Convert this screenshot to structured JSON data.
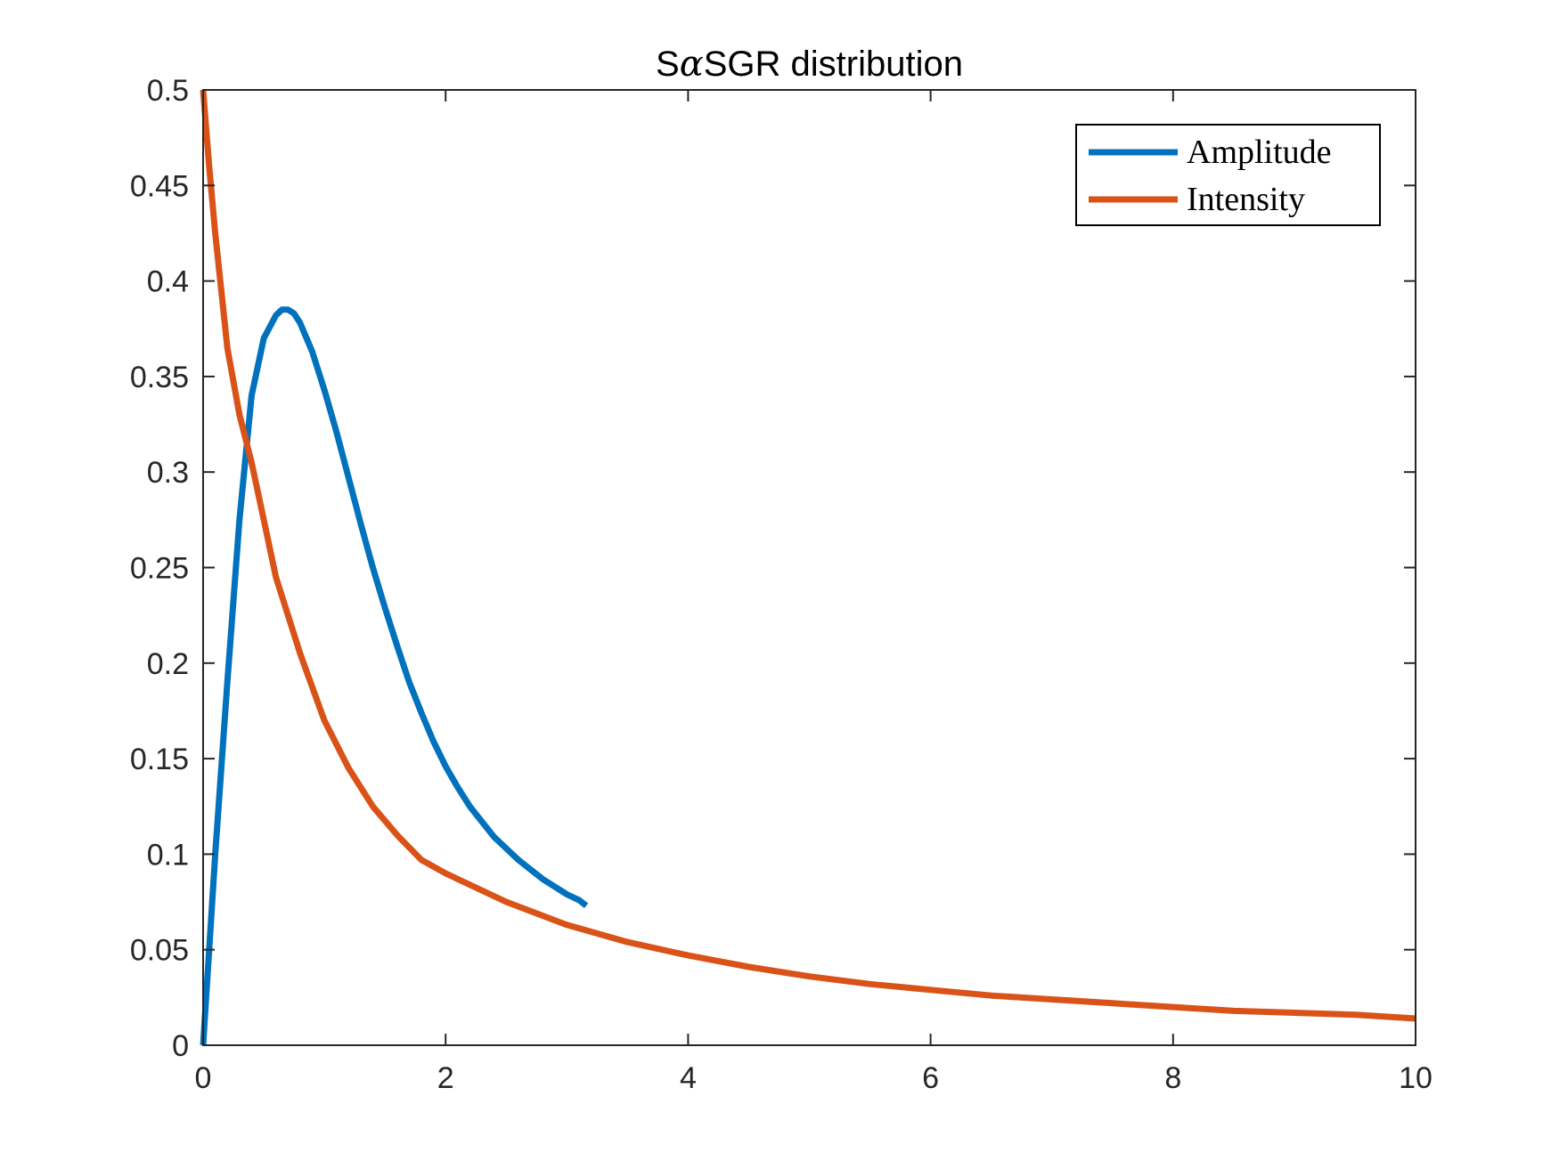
{
  "chart_data": {
    "type": "line",
    "title": {
      "prefix": "S",
      "greek": "α",
      "suffix": "SGR distribution"
    },
    "xlabel": "",
    "ylabel": "",
    "xlim": [
      0,
      10
    ],
    "ylim": [
      0,
      0.5
    ],
    "xticks": [
      0,
      2,
      4,
      6,
      8,
      10
    ],
    "xtick_labels": [
      "0",
      "2",
      "4",
      "6",
      "8",
      "10"
    ],
    "yticks": [
      0,
      0.05,
      0.1,
      0.15,
      0.2,
      0.25,
      0.3,
      0.35,
      0.4,
      0.45,
      0.5
    ],
    "ytick_labels": [
      "0",
      "0.05",
      "0.1",
      "0.15",
      "0.2",
      "0.25",
      "0.3",
      "0.35",
      "0.4",
      "0.45",
      "0.5"
    ],
    "grid": false,
    "legend_position": "top-right",
    "series": [
      {
        "name": "Amplitude",
        "color": "#0072BD",
        "x": [
          0,
          0.05,
          0.1,
          0.2,
          0.3,
          0.4,
          0.5,
          0.6,
          0.65,
          0.7,
          0.75,
          0.8,
          0.9,
          1.0,
          1.1,
          1.2,
          1.3,
          1.4,
          1.5,
          1.6,
          1.7,
          1.8,
          1.9,
          2.0,
          2.1,
          2.2,
          2.3,
          2.4,
          2.5,
          2.6,
          2.7,
          2.8,
          2.9,
          3.0,
          3.1,
          3.16
        ],
        "y": [
          0,
          0.05,
          0.1,
          0.19,
          0.275,
          0.34,
          0.37,
          0.382,
          0.385,
          0.385,
          0.383,
          0.378,
          0.363,
          0.343,
          0.321,
          0.297,
          0.273,
          0.25,
          0.229,
          0.209,
          0.19,
          0.174,
          0.159,
          0.146,
          0.135,
          0.125,
          0.117,
          0.109,
          0.103,
          0.097,
          0.092,
          0.087,
          0.083,
          0.079,
          0.076,
          0.073
        ]
      },
      {
        "name": "Intensity",
        "color": "#D95319",
        "x": [
          0,
          0.05,
          0.1,
          0.15,
          0.2,
          0.3,
          0.4,
          0.5,
          0.6,
          0.7,
          0.8,
          1.0,
          1.2,
          1.4,
          1.6,
          1.8,
          2.0,
          2.5,
          3.0,
          3.5,
          4.0,
          4.5,
          5.0,
          5.5,
          6.0,
          6.5,
          7.0,
          7.5,
          8.0,
          8.5,
          9.0,
          9.5,
          10.0
        ],
        "y": [
          0.5,
          0.46,
          0.425,
          0.395,
          0.365,
          0.33,
          0.305,
          0.275,
          0.245,
          0.225,
          0.205,
          0.17,
          0.145,
          0.125,
          0.11,
          0.097,
          0.09,
          0.075,
          0.063,
          0.054,
          0.047,
          0.041,
          0.036,
          0.032,
          0.029,
          0.026,
          0.024,
          0.022,
          0.02,
          0.018,
          0.017,
          0.016,
          0.014
        ]
      }
    ]
  }
}
